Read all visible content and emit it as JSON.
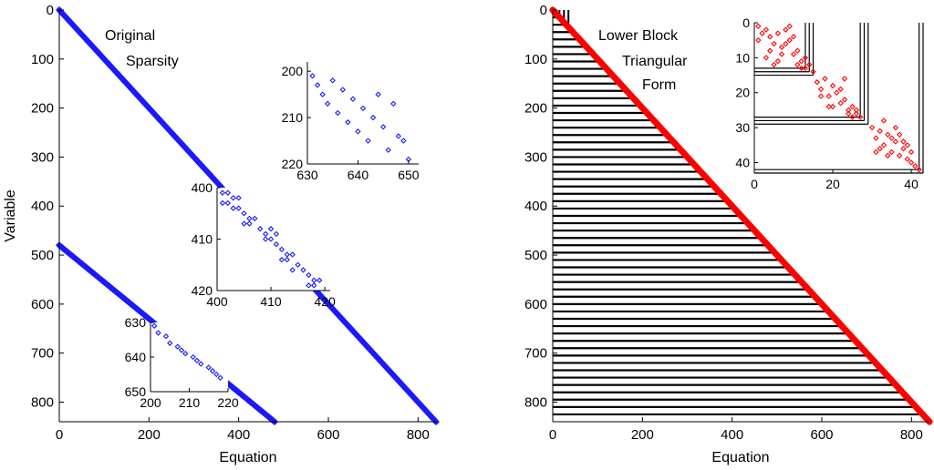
{
  "chart_data": [
    {
      "type": "scatter",
      "panel": "original-sparsity",
      "xlabel": "Equation",
      "ylabel": "Variable",
      "xlim": [
        0,
        840
      ],
      "ylim": [
        840,
        0
      ],
      "xticks": [
        "0",
        "200",
        "400",
        "600",
        "800"
      ],
      "yticks": [
        "0",
        "100",
        "200",
        "300",
        "400",
        "500",
        "600",
        "700",
        "800"
      ],
      "annotation": [
        "Original",
        "Sparsity"
      ],
      "marker_color": "#1a1aff",
      "series": [
        {
          "x": [
            0,
            840
          ],
          "y": [
            0,
            840
          ]
        },
        {
          "x": [
            0,
            480
          ],
          "y": [
            480,
            840
          ]
        }
      ],
      "insets": [
        {
          "xlim": [
            630,
            652
          ],
          "ylim": [
            220,
            198
          ],
          "xticks": [
            "630",
            "640",
            "650"
          ],
          "yticks": [
            "200",
            "210",
            "220"
          ],
          "points": [
            [
              631,
              201
            ],
            [
              632,
              203
            ],
            [
              633,
              205
            ],
            [
              634,
              207
            ],
            [
              635,
              202
            ],
            [
              636,
              209
            ],
            [
              637,
              204
            ],
            [
              638,
              211
            ],
            [
              639,
              206
            ],
            [
              640,
              213
            ],
            [
              641,
              208
            ],
            [
              642,
              215
            ],
            [
              643,
              210
            ],
            [
              644,
              205
            ],
            [
              645,
              212
            ],
            [
              646,
              217
            ],
            [
              647,
              207
            ],
            [
              648,
              214
            ],
            [
              649,
              215
            ],
            [
              650,
              219
            ]
          ]
        },
        {
          "xlim": [
            400,
            421
          ],
          "ylim": [
            420,
            400
          ],
          "xticks": [
            "400",
            "410",
            "420"
          ],
          "yticks": [
            "400",
            "410",
            "420"
          ],
          "points": [
            [
              401,
              401
            ],
            [
              402,
              401
            ],
            [
              403,
              402
            ],
            [
              401,
              403
            ],
            [
              402,
              403
            ],
            [
              404,
              402
            ],
            [
              403,
              404
            ],
            [
              404,
              404
            ],
            [
              405,
              405
            ],
            [
              406,
              406
            ],
            [
              405,
              407
            ],
            [
              406,
              407
            ],
            [
              407,
              406
            ],
            [
              408,
              408
            ],
            [
              409,
              409
            ],
            [
              410,
              408
            ],
            [
              409,
              410
            ],
            [
              410,
              410
            ],
            [
              411,
              411
            ],
            [
              411,
              409
            ],
            [
              412,
              412
            ],
            [
              413,
              413
            ],
            [
              412,
              414
            ],
            [
              413,
              414
            ],
            [
              414,
              413
            ],
            [
              415,
              415
            ],
            [
              414,
              416
            ],
            [
              416,
              416
            ],
            [
              417,
              417
            ],
            [
              418,
              418
            ],
            [
              417,
              419
            ],
            [
              418,
              419
            ],
            [
              419,
              418
            ]
          ]
        },
        {
          "xlim": [
            200,
            220
          ],
          "ylim": [
            650,
            630
          ],
          "xticks": [
            "200",
            "210",
            "220"
          ],
          "yticks": [
            "630",
            "640",
            "650"
          ],
          "points": [
            [
              201,
              631
            ],
            [
              202,
              633
            ],
            [
              204,
              634
            ],
            [
              205,
              636
            ],
            [
              207,
              637
            ],
            [
              208,
              638
            ],
            [
              209,
              639
            ],
            [
              211,
              640
            ],
            [
              212,
              641
            ],
            [
              213,
              642
            ],
            [
              215,
              643
            ],
            [
              216,
              644
            ],
            [
              217,
              645
            ],
            [
              218,
              646
            ]
          ]
        }
      ]
    },
    {
      "type": "scatter",
      "panel": "lower-block-triangular",
      "xlabel": "Equation",
      "ylabel": "",
      "xlim": [
        0,
        840
      ],
      "ylim": [
        840,
        0
      ],
      "xticks": [
        "0",
        "200",
        "400",
        "600",
        "800"
      ],
      "yticks": [
        "0",
        "100",
        "200",
        "300",
        "400",
        "500",
        "600",
        "700",
        "800"
      ],
      "annotation": [
        "Lower Block",
        "Triangular",
        "Form"
      ],
      "marker_color": "#ff0000",
      "row_line_spacing": 15,
      "column_lines_x": [
        15,
        25,
        35
      ],
      "series": [
        {
          "x": [
            0,
            840
          ],
          "y": [
            0,
            840
          ]
        }
      ],
      "insets": [
        {
          "xlim": [
            0,
            43
          ],
          "ylim": [
            43,
            0
          ],
          "xticks": [
            "0",
            "20",
            "40"
          ],
          "yticks": [
            "0",
            "10",
            "20",
            "30",
            "40"
          ],
          "block_lines": [
            13,
            14,
            15,
            27,
            28,
            29,
            42,
            43
          ],
          "points": [
            [
              1,
              1
            ],
            [
              2,
              3
            ],
            [
              3,
              2
            ],
            [
              4,
              4
            ],
            [
              1,
              5
            ],
            [
              5,
              6
            ],
            [
              6,
              3
            ],
            [
              7,
              7
            ],
            [
              8,
              2
            ],
            [
              9,
              5
            ],
            [
              10,
              9
            ],
            [
              11,
              8
            ],
            [
              12,
              11
            ],
            [
              13,
              10
            ],
            [
              3,
              10
            ],
            [
              5,
              12
            ],
            [
              7,
              9
            ],
            [
              4,
              8
            ],
            [
              6,
              11
            ],
            [
              8,
              6
            ],
            [
              9,
              1
            ],
            [
              10,
              4
            ],
            [
              11,
              12
            ],
            [
              12,
              13
            ],
            [
              13,
              13
            ],
            [
              14,
              12
            ],
            [
              16,
              17
            ],
            [
              17,
              19
            ],
            [
              18,
              16
            ],
            [
              19,
              21
            ],
            [
              20,
              18
            ],
            [
              21,
              20
            ],
            [
              22,
              23
            ],
            [
              23,
              22
            ],
            [
              24,
              25
            ],
            [
              25,
              24
            ],
            [
              26,
              26
            ],
            [
              27,
              27
            ],
            [
              17,
              21
            ],
            [
              19,
              24
            ],
            [
              22,
              19
            ],
            [
              24,
              26
            ],
            [
              25,
              27
            ],
            [
              26,
              25
            ],
            [
              30,
              30
            ],
            [
              31,
              33
            ],
            [
              32,
              31
            ],
            [
              33,
              35
            ],
            [
              34,
              32
            ],
            [
              35,
              37
            ],
            [
              36,
              34
            ],
            [
              37,
              38
            ],
            [
              38,
              36
            ],
            [
              39,
              39
            ],
            [
              40,
              40
            ],
            [
              41,
              41
            ],
            [
              42,
              42
            ],
            [
              32,
              36
            ],
            [
              34,
              38
            ],
            [
              36,
              30
            ],
            [
              38,
              34
            ],
            [
              40,
              37
            ],
            [
              33,
              28
            ],
            [
              37,
              32
            ],
            [
              39,
              35
            ],
            [
              35,
              33
            ],
            [
              31,
              37
            ],
            [
              15,
              14
            ],
            [
              20,
              24
            ],
            [
              23,
              16
            ]
          ]
        }
      ]
    }
  ]
}
